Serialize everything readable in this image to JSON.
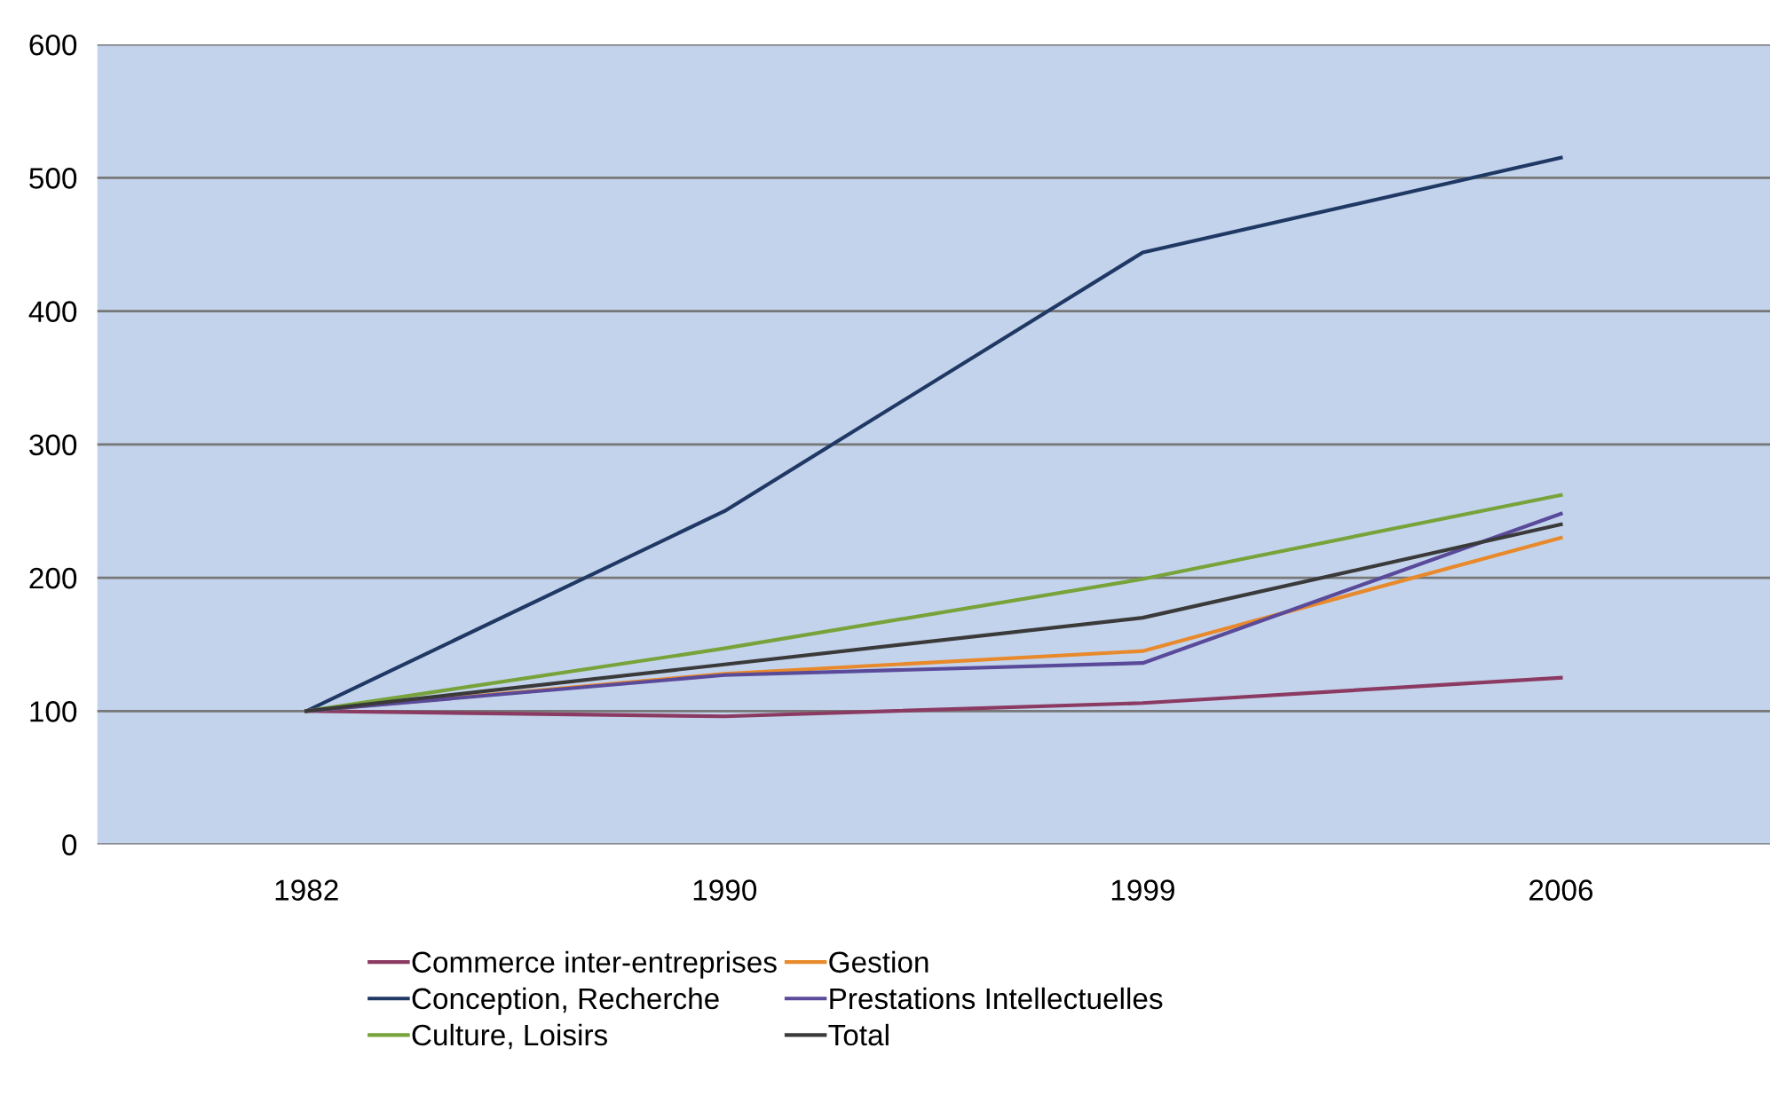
{
  "chart_data": {
    "type": "line",
    "categories": [
      "1982",
      "1990",
      "1999",
      "2006"
    ],
    "series": [
      {
        "name": "Commerce inter-entreprises",
        "color": "#8b3a62",
        "values": [
          100,
          96,
          106,
          125
        ]
      },
      {
        "name": "Conception, Recherche",
        "color": "#1f3864",
        "values": [
          100,
          250,
          444,
          515
        ]
      },
      {
        "name": "Culture, Loisirs",
        "color": "#77a33a",
        "values": [
          100,
          147,
          199,
          262
        ]
      },
      {
        "name": "Gestion",
        "color": "#e8892b",
        "values": [
          100,
          128,
          145,
          230
        ]
      },
      {
        "name": "Prestations Intellectuelles",
        "color": "#5a4a9a",
        "values": [
          100,
          127,
          136,
          248
        ]
      },
      {
        "name": "Total",
        "color": "#3a3a3a",
        "values": [
          100,
          135,
          170,
          240
        ]
      }
    ],
    "ylim": [
      0,
      600
    ],
    "yticks": [
      0,
      100,
      200,
      300,
      400,
      500,
      600
    ],
    "grid": "y",
    "legend": "bottom",
    "marker": "none",
    "line_style": "solid"
  }
}
